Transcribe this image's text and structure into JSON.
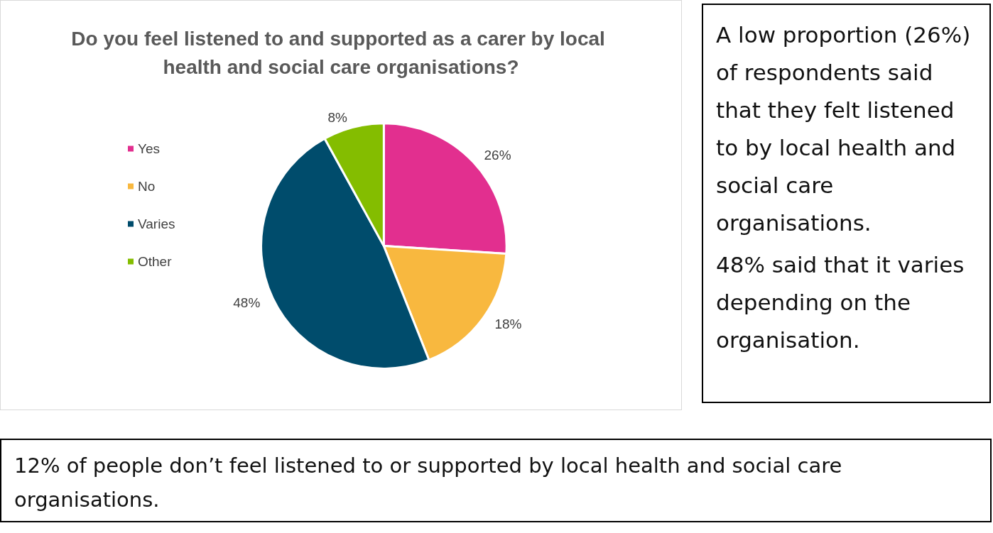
{
  "chart_data": {
    "type": "pie",
    "title": "Do you feel listened to and supported as a carer by local health and social care organisations?",
    "categories": [
      "Yes",
      "No",
      "Varies",
      "Other"
    ],
    "values": [
      26,
      18,
      48,
      8
    ],
    "value_labels": [
      "26%",
      "18%",
      "48%",
      "8%"
    ],
    "colors": [
      "#e22f8f",
      "#f8b83f",
      "#004c6c",
      "#84bd00"
    ],
    "legend": "left",
    "annotations": [
      "A low proportion (26%) of respondents said that they felt listened to by local health and social care organisations.",
      "48% said that it varies depending on the organisation.",
      "12% of people don’t feel listened to or supported by local health and social care organisations."
    ]
  }
}
